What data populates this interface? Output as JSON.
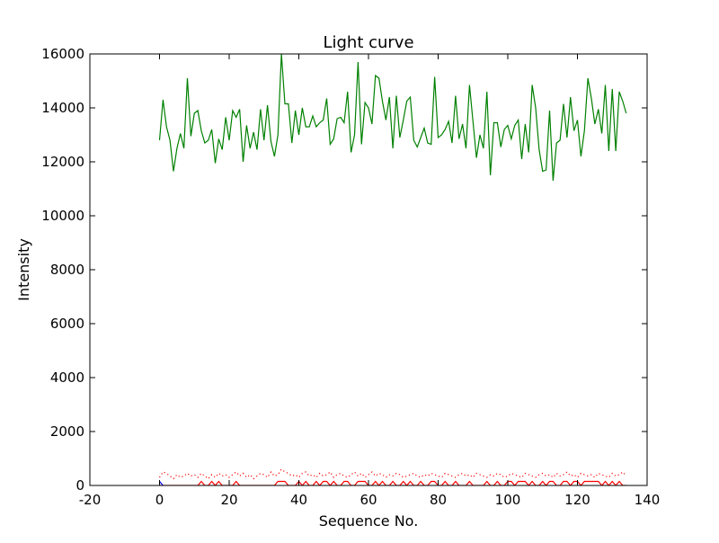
{
  "chart_data": {
    "type": "line",
    "title": "Light curve",
    "xlabel": "Sequence No.",
    "ylabel": "Intensity",
    "xlim": [
      -20,
      140
    ],
    "ylim": [
      0,
      16000
    ],
    "xticks": [
      -20,
      0,
      20,
      40,
      60,
      80,
      100,
      120,
      140
    ],
    "yticks": [
      0,
      2000,
      4000,
      6000,
      8000,
      10000,
      12000,
      14000,
      16000
    ],
    "grid": false,
    "legend": "none",
    "series": [
      {
        "color": "#008000",
        "style": "solid",
        "x_start": 0,
        "values": [
          12800,
          14300,
          13300,
          12800,
          11650,
          12500,
          13050,
          12500,
          15100,
          12950,
          13800,
          13900,
          13150,
          12700,
          12800,
          13200,
          11950,
          12850,
          12450,
          13650,
          12800,
          13900,
          13650,
          13950,
          12000,
          13350,
          12500,
          13100,
          12450,
          13950,
          12800,
          14100,
          12750,
          12200,
          13000,
          16000,
          14150,
          14150,
          12700,
          13900,
          13000,
          14000,
          13300,
          13300,
          13700,
          13300,
          13450,
          13550,
          14350,
          12650,
          12850,
          13600,
          13650,
          13450,
          14600,
          12350,
          13000,
          15700,
          12650,
          14200,
          14000,
          13400,
          15200,
          15100,
          14250,
          13550,
          14400,
          12500,
          14450,
          12900,
          13550,
          14250,
          14400,
          12800,
          12550,
          12900,
          13250,
          12700,
          12650,
          15150,
          12900,
          13000,
          13200,
          13500,
          12700,
          14450,
          12850,
          13400,
          12500,
          14850,
          13500,
          12150,
          13000,
          12500,
          14600,
          11500,
          13450,
          13450,
          12550,
          13200,
          13350,
          12850,
          13350,
          13550,
          12100,
          13400,
          12350,
          14850,
          14000,
          12450,
          11650,
          11700,
          13900,
          11300,
          12700,
          12800,
          14150,
          12900,
          14400,
          13150,
          13550,
          12200,
          13150,
          15100,
          14350,
          13400,
          13950,
          13050,
          14850,
          12400,
          14700,
          12400,
          14600,
          14250,
          13800
        ]
      },
      {
        "color": "#ff0000",
        "style": "dotted",
        "x_start": 0,
        "values": [
          300,
          500,
          450,
          350,
          250,
          400,
          300,
          350,
          450,
          350,
          400,
          300,
          450,
          350,
          250,
          400,
          300,
          450,
          350,
          400,
          300,
          400,
          500,
          350,
          450,
          300,
          400,
          250,
          350,
          450,
          400,
          300,
          500,
          350,
          400,
          600,
          500,
          450,
          350,
          400,
          300,
          450,
          500,
          350,
          400,
          300,
          450,
          350,
          400,
          500,
          300,
          400,
          450,
          350,
          300,
          400,
          500,
          350,
          450,
          300,
          400,
          500,
          350,
          450,
          400,
          300,
          400,
          350,
          450,
          400,
          300,
          350,
          400,
          450,
          350,
          300,
          400,
          350,
          450,
          400,
          350,
          300,
          450,
          400,
          350,
          300,
          400,
          450,
          350,
          400,
          300,
          450,
          400,
          350,
          300,
          400,
          350,
          450,
          400,
          300,
          350,
          450,
          400,
          350,
          300,
          450,
          400,
          350,
          300,
          400,
          450,
          350,
          400,
          300,
          450,
          350,
          400,
          500,
          350,
          400,
          300,
          450,
          400,
          350,
          400,
          300,
          450,
          400,
          350,
          300,
          450,
          350,
          400,
          500,
          350
        ]
      },
      {
        "color": "#ff0000",
        "style": "solid",
        "x_start": 0,
        "values": [
          0,
          0,
          0,
          0,
          0,
          0,
          0,
          0,
          0,
          0,
          0,
          0,
          150,
          0,
          0,
          150,
          0,
          150,
          0,
          0,
          0,
          0,
          150,
          0,
          0,
          0,
          0,
          0,
          0,
          0,
          0,
          0,
          0,
          0,
          150,
          150,
          150,
          0,
          0,
          0,
          150,
          0,
          150,
          0,
          0,
          150,
          0,
          150,
          150,
          0,
          150,
          0,
          0,
          150,
          150,
          0,
          0,
          150,
          150,
          150,
          0,
          0,
          150,
          0,
          150,
          0,
          0,
          150,
          0,
          0,
          150,
          0,
          150,
          0,
          0,
          150,
          0,
          0,
          150,
          150,
          0,
          0,
          150,
          0,
          0,
          150,
          0,
          0,
          0,
          150,
          0,
          0,
          0,
          0,
          150,
          0,
          0,
          150,
          0,
          0,
          150,
          150,
          0,
          150,
          150,
          150,
          0,
          150,
          0,
          0,
          150,
          0,
          150,
          150,
          0,
          0,
          150,
          150,
          0,
          150,
          150,
          0,
          150,
          150,
          150,
          150,
          150,
          0,
          150,
          0,
          150,
          0,
          150,
          0,
          0
        ]
      },
      {
        "color": "#0000ff",
        "style": "solid",
        "x_start": 0,
        "values": [
          150,
          0
        ]
      }
    ]
  }
}
